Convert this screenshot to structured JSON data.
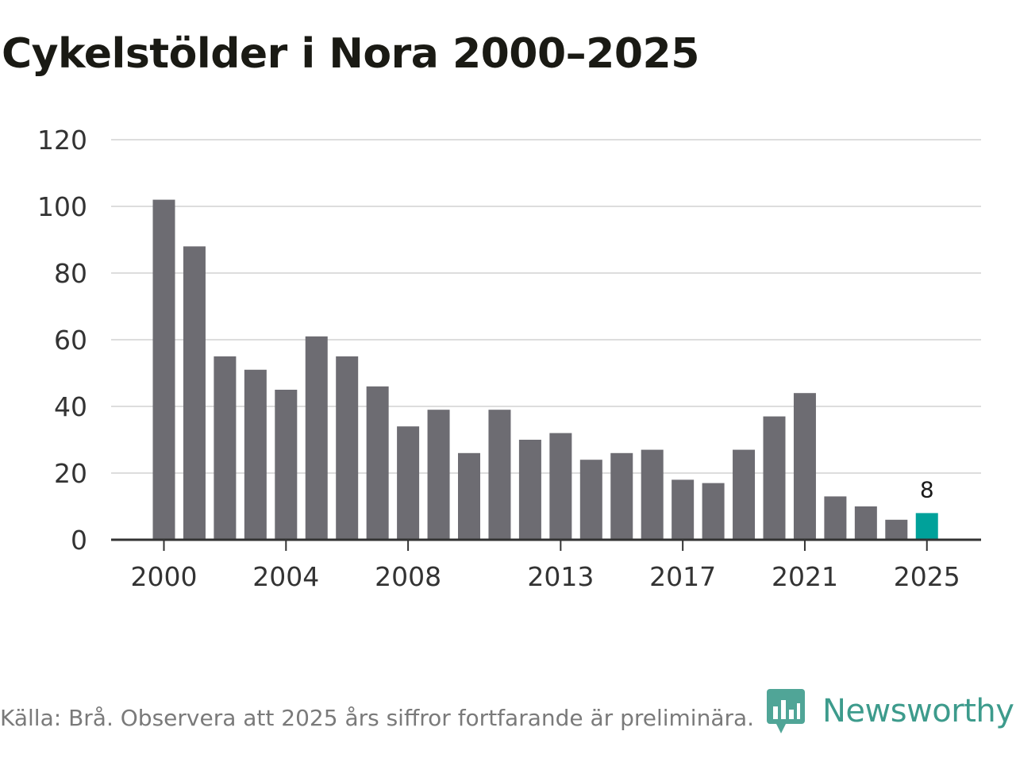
{
  "chart_data": {
    "type": "bar",
    "title": "Cykelstölder i Nora 2000–2025",
    "xlabel": "",
    "ylabel": "",
    "ylim": [
      0,
      120
    ],
    "yticks": [
      0,
      20,
      40,
      60,
      80,
      100,
      120
    ],
    "categories": [
      "2000",
      "2001",
      "2002",
      "2003",
      "2004",
      "2005",
      "2006",
      "2007",
      "2008",
      "2009",
      "2010",
      "2011",
      "2012",
      "2013",
      "2014",
      "2015",
      "2016",
      "2017",
      "2018",
      "2019",
      "2020",
      "2021",
      "2022",
      "2023",
      "2024",
      "2025"
    ],
    "values": [
      102,
      88,
      55,
      51,
      45,
      61,
      55,
      46,
      34,
      39,
      26,
      39,
      30,
      32,
      24,
      26,
      27,
      18,
      17,
      27,
      37,
      44,
      13,
      10,
      6,
      8
    ],
    "xtick_labels": [
      "2000",
      "2004",
      "2008",
      "2013",
      "2017",
      "2021",
      "2025"
    ],
    "highlight": {
      "category": "2025",
      "label": "8"
    },
    "colors": {
      "bar": "#6d6c72",
      "highlight": "#00a19a",
      "grid": "#dddddd",
      "axis": "#333333"
    },
    "grid": true
  },
  "footer": {
    "source": "Källa: Brå. Observera att 2025 års siffror fortfarande är preliminära."
  },
  "brand": {
    "name": "Newsworthy",
    "icon": "newsworthy-logo-icon",
    "color": "#3d9b8c"
  }
}
